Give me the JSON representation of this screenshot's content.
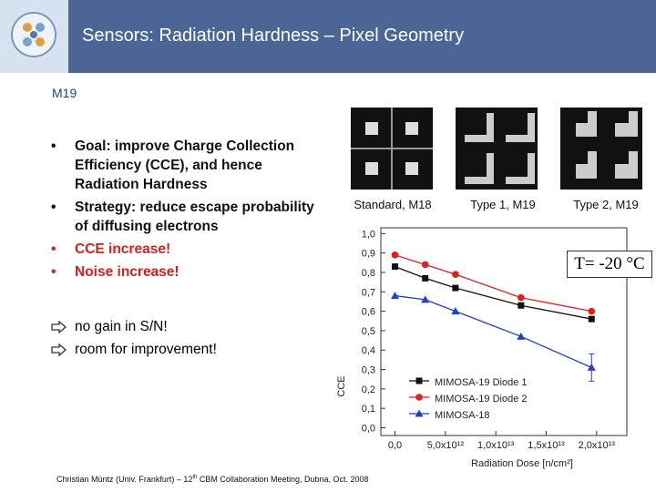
{
  "header": {
    "title": "Sensors: Radiation Hardness – Pixel Geometry"
  },
  "section": "M19",
  "bullets": [
    {
      "text": "Goal: improve Charge Collection Efficiency (CCE), and hence Radiation Hardness",
      "color": "#111111"
    },
    {
      "text": "Strategy: reduce escape probability of diffusing electrons",
      "color": "#111111"
    },
    {
      "text": "CCE increase!",
      "color": "#d42020"
    },
    {
      "text": "Noise increase!",
      "color": "#d42020"
    }
  ],
  "conclusions": [
    "no gain in S/N!",
    "room for improvement!"
  ],
  "pixel_types": [
    "Standard, M18",
    "Type 1, M19",
    "Type 2, M19"
  ],
  "temperature_note": "T= -20 °C",
  "footer": [
    "Christian Müntz (Univ. Frankfurt) – 12",
    "th",
    " CBM Collaboration Meeting, Dubna, Oct. 2008"
  ],
  "chart_data": {
    "type": "line",
    "x_label": "Radiation Dose [n/cm²]",
    "y_label": "CCE",
    "xlim": [
      -1400000000000.0,
      23000000000000.0
    ],
    "ylim": [
      -0.04,
      1.03
    ],
    "xticks": [
      {
        "value": 0,
        "label": "0,0"
      },
      {
        "value": 5000000000000.0,
        "label": "5,0x10¹²"
      },
      {
        "value": 10000000000000.0,
        "label": "1,0x10¹³"
      },
      {
        "value": 15000000000000.0,
        "label": "1,5x10¹³"
      },
      {
        "value": 20000000000000.0,
        "label": "2,0x10¹³"
      }
    ],
    "yticks": [
      {
        "value": 0,
        "label": "0,0"
      },
      {
        "value": 0.1,
        "label": "0,1"
      },
      {
        "value": 0.2,
        "label": "0,2"
      },
      {
        "value": 0.3,
        "label": "0,3"
      },
      {
        "value": 0.4,
        "label": "0,4"
      },
      {
        "value": 0.5,
        "label": "0,5"
      },
      {
        "value": 0.6,
        "label": "0,6"
      },
      {
        "value": 0.7,
        "label": "0,7"
      },
      {
        "value": 0.8,
        "label": "0,8"
      },
      {
        "value": 0.9,
        "label": "0,9"
      },
      {
        "value": 1.0,
        "label": "1,0"
      }
    ],
    "x": [
      0,
      3000000000000.0,
      6000000000000.0,
      12500000000000.0,
      19500000000000.0
    ],
    "series": [
      {
        "name": "MIMOSA-19 Diode 1",
        "color": "#111111",
        "marker": "square",
        "values": [
          0.83,
          0.77,
          0.72,
          0.63,
          0.56
        ]
      },
      {
        "name": "MIMOSA-19 Diode 2",
        "color": "#e02020",
        "marker": "circle",
        "values": [
          0.89,
          0.84,
          0.79,
          0.67,
          0.6
        ]
      },
      {
        "name": "MIMOSA-18",
        "color": "#1f3fd0",
        "marker": "triangle",
        "values": [
          0.68,
          0.66,
          0.6,
          0.47,
          0.31
        ],
        "errors": [
          null,
          null,
          null,
          null,
          0.07
        ]
      }
    ],
    "legend": "lower left",
    "grid": false
  }
}
